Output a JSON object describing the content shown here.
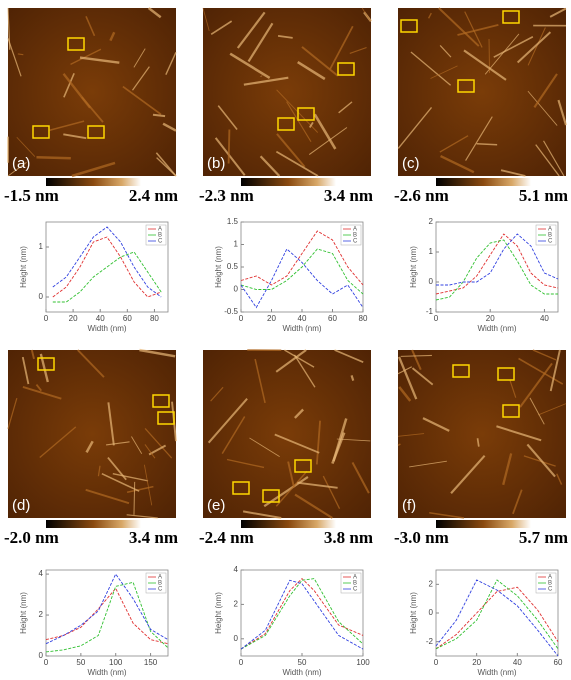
{
  "panels": [
    {
      "label": "(a)",
      "scale_min": "-1.5 nm",
      "scale_max": "2.4 nm"
    },
    {
      "label": "(b)",
      "scale_min": "-2.3 nm",
      "scale_max": "3.4 nm"
    },
    {
      "label": "(c)",
      "scale_min": "-2.6 nm",
      "scale_max": "5.1 nm"
    },
    {
      "label": "(d)",
      "scale_min": "-2.0 nm",
      "scale_max": "3.4 nm"
    },
    {
      "label": "(e)",
      "scale_min": "-2.4 nm",
      "scale_max": "3.8 nm"
    },
    {
      "label": "(f)",
      "scale_min": "-3.0 nm",
      "scale_max": "5.7 nm"
    }
  ],
  "chart_data": [
    {
      "type": "line",
      "x_label": "Width (nm)",
      "y_label": "Height (nm)",
      "x": [
        5,
        15,
        25,
        35,
        45,
        55,
        65,
        75,
        85
      ],
      "xlim": [
        0,
        90
      ],
      "xticks": [
        0,
        20,
        40,
        60,
        80
      ],
      "ylim": [
        -0.3,
        1.5
      ],
      "yticks": [
        0,
        1
      ],
      "series": [
        {
          "name": "A",
          "color": "#e03030",
          "values": [
            0.0,
            0.2,
            0.6,
            1.1,
            1.2,
            0.8,
            0.3,
            0.0,
            0.1
          ]
        },
        {
          "name": "B",
          "color": "#30c030",
          "values": [
            -0.1,
            -0.1,
            0.1,
            0.4,
            0.6,
            0.8,
            0.9,
            0.5,
            0.1
          ]
        },
        {
          "name": "C",
          "color": "#3040e0",
          "values": [
            0.2,
            0.4,
            0.8,
            1.2,
            1.4,
            1.1,
            0.6,
            0.2,
            0.0
          ]
        }
      ]
    },
    {
      "type": "line",
      "x_label": "Width (nm)",
      "y_label": "Height (nm)",
      "x": [
        0,
        10,
        20,
        30,
        40,
        50,
        60,
        70,
        80
      ],
      "xlim": [
        0,
        80
      ],
      "xticks": [
        0,
        20,
        40,
        60,
        80
      ],
      "ylim": [
        -0.5,
        1.5
      ],
      "yticks": [
        -0.5,
        0,
        0.5,
        1,
        1.5
      ],
      "series": [
        {
          "name": "A",
          "color": "#e03030",
          "values": [
            0.2,
            0.3,
            0.1,
            0.3,
            0.8,
            1.3,
            1.1,
            0.5,
            0.1
          ]
        },
        {
          "name": "B",
          "color": "#30c030",
          "values": [
            0.1,
            0.0,
            0.0,
            0.2,
            0.5,
            0.9,
            0.8,
            0.2,
            -0.1
          ]
        },
        {
          "name": "C",
          "color": "#3040e0",
          "values": [
            0.1,
            -0.4,
            0.2,
            0.9,
            0.6,
            0.2,
            -0.1,
            0.1,
            -0.4
          ]
        }
      ]
    },
    {
      "type": "line",
      "x_label": "Width (nm)",
      "y_label": "Height (nm)",
      "x": [
        0,
        5,
        10,
        15,
        20,
        25,
        30,
        35,
        40,
        45
      ],
      "xlim": [
        0,
        45
      ],
      "xticks": [
        0,
        20,
        40
      ],
      "ylim": [
        -1,
        2
      ],
      "yticks": [
        -1,
        0,
        1,
        2
      ],
      "series": [
        {
          "name": "A",
          "color": "#e03030",
          "values": [
            -0.4,
            -0.3,
            -0.2,
            0.2,
            0.9,
            1.6,
            1.2,
            0.3,
            -0.1,
            -0.2
          ]
        },
        {
          "name": "B",
          "color": "#30c030",
          "values": [
            -0.6,
            -0.5,
            0.0,
            0.8,
            1.3,
            1.4,
            0.7,
            -0.1,
            -0.4,
            -0.4
          ]
        },
        {
          "name": "C",
          "color": "#3040e0",
          "values": [
            -0.1,
            -0.1,
            0.0,
            0.0,
            0.3,
            1.1,
            1.6,
            1.2,
            0.3,
            0.1
          ]
        }
      ]
    },
    {
      "type": "line",
      "x_label": "Width (nm)",
      "y_label": "Height (nm)",
      "x": [
        0,
        25,
        50,
        75,
        100,
        125,
        150,
        175
      ],
      "xlim": [
        0,
        175
      ],
      "xticks": [
        0,
        50,
        100,
        150
      ],
      "ylim": [
        0,
        4.2
      ],
      "yticks": [
        0,
        2,
        4
      ],
      "series": [
        {
          "name": "A",
          "color": "#e03030",
          "values": [
            0.8,
            1.0,
            1.4,
            2.3,
            3.3,
            1.6,
            0.8,
            0.6
          ]
        },
        {
          "name": "B",
          "color": "#30c030",
          "values": [
            0.2,
            0.3,
            0.5,
            1.0,
            3.4,
            3.6,
            1.2,
            0.4
          ]
        },
        {
          "name": "C",
          "color": "#3040e0",
          "values": [
            0.6,
            1.0,
            1.5,
            2.2,
            4.0,
            2.8,
            1.3,
            0.8
          ]
        }
      ]
    },
    {
      "type": "line",
      "x_label": "Width (nm)",
      "y_label": "Height (nm)",
      "x": [
        0,
        20,
        40,
        50,
        60,
        80,
        100
      ],
      "xlim": [
        0,
        100
      ],
      "xticks": [
        0,
        50,
        100
      ],
      "ylim": [
        -1,
        4
      ],
      "yticks": [
        0,
        2,
        4
      ],
      "series": [
        {
          "name": "A",
          "color": "#e03030",
          "values": [
            -0.6,
            0.3,
            2.8,
            3.5,
            2.8,
            0.8,
            0.2
          ]
        },
        {
          "name": "B",
          "color": "#30c030",
          "values": [
            -0.6,
            0.2,
            2.5,
            3.4,
            3.5,
            1.0,
            -0.3
          ]
        },
        {
          "name": "C",
          "color": "#3040e0",
          "values": [
            -0.6,
            0.5,
            3.4,
            3.2,
            2.2,
            0.2,
            -0.6
          ]
        }
      ]
    },
    {
      "type": "line",
      "x_label": "Width (nm)",
      "y_label": "Height (nm)",
      "x": [
        0,
        10,
        20,
        30,
        40,
        50,
        60
      ],
      "xlim": [
        0,
        60
      ],
      "xticks": [
        0,
        20,
        40,
        60
      ],
      "ylim": [
        -3,
        3
      ],
      "yticks": [
        -2,
        0,
        2
      ],
      "series": [
        {
          "name": "A",
          "color": "#e03030",
          "values": [
            -2.5,
            -1.5,
            0.0,
            1.5,
            1.8,
            0.2,
            -2.0
          ]
        },
        {
          "name": "B",
          "color": "#30c030",
          "values": [
            -2.5,
            -1.8,
            -0.5,
            2.3,
            1.2,
            -0.5,
            -2.5
          ]
        },
        {
          "name": "C",
          "color": "#3040e0",
          "values": [
            -2.3,
            -0.5,
            2.3,
            1.6,
            0.5,
            -1.2,
            -3.0
          ]
        }
      ]
    }
  ]
}
